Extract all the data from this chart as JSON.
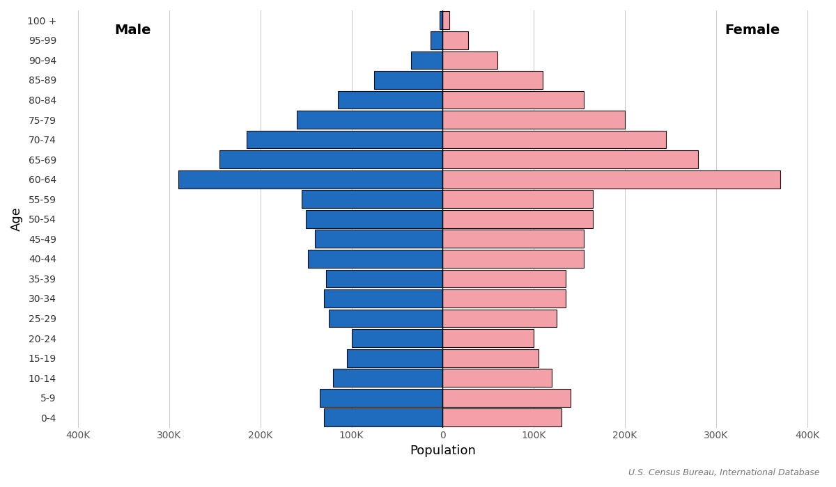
{
  "xlabel": "Population",
  "ylabel": "Age",
  "source": "U.S. Census Bureau, International Database",
  "age_groups": [
    "0-4",
    "5-9",
    "10-14",
    "15-19",
    "20-24",
    "25-29",
    "30-34",
    "35-39",
    "40-44",
    "45-49",
    "50-54",
    "55-59",
    "60-64",
    "65-69",
    "70-74",
    "75-79",
    "80-84",
    "85-89",
    "90-94",
    "95-99",
    "100 +"
  ],
  "male": [
    130000,
    135000,
    120000,
    105000,
    100000,
    125000,
    130000,
    128000,
    148000,
    140000,
    150000,
    155000,
    290000,
    245000,
    215000,
    160000,
    115000,
    75000,
    35000,
    13000,
    3500
  ],
  "female": [
    130000,
    140000,
    120000,
    105000,
    100000,
    125000,
    135000,
    135000,
    155000,
    155000,
    165000,
    165000,
    370000,
    280000,
    245000,
    200000,
    155000,
    110000,
    60000,
    28000,
    7000
  ],
  "male_color": "#1f6bbd",
  "female_color": "#f4a0a8",
  "edge_color": "#111111",
  "background_color": "#ffffff",
  "grid_color": "#cccccc",
  "male_label": "Male",
  "female_label": "Female",
  "xlim": 420000,
  "xtick_values": [
    -400000,
    -300000,
    -200000,
    -100000,
    0,
    100000,
    200000,
    300000,
    400000
  ],
  "xtick_labels": [
    "400K",
    "300K",
    "200K",
    "100K",
    "0",
    "100K",
    "200K",
    "300K",
    "400K"
  ]
}
